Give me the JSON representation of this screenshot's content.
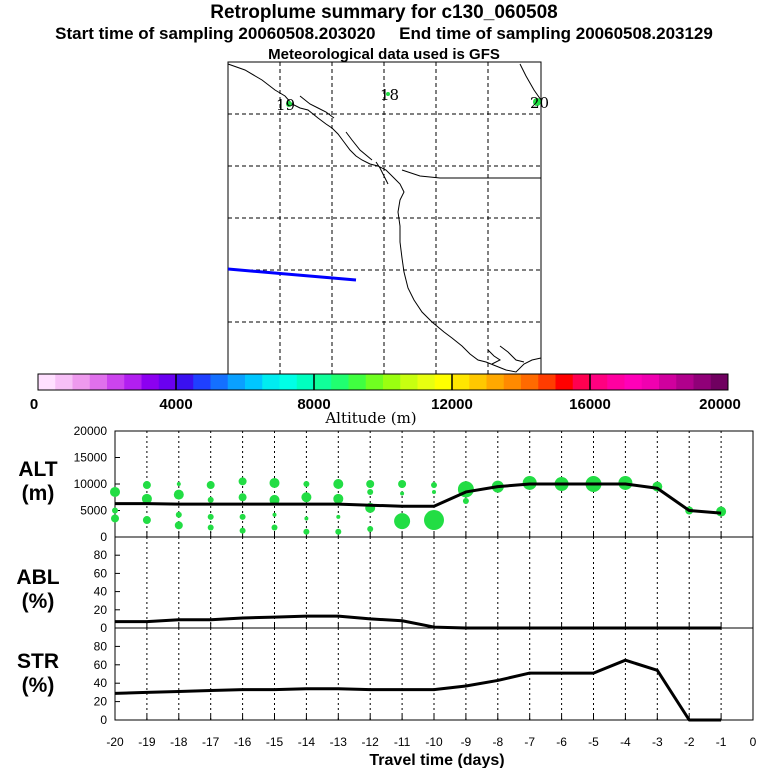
{
  "title": "Retroplume summary for c130_060508",
  "subtitle_start": "Start time of sampling 20060508.203020",
  "subtitle_end": "End time of sampling 20060508.203129",
  "subtitle_met": "Meteorological data used is GFS",
  "map": {
    "day_labels": [
      "19",
      "18",
      "20"
    ],
    "trajectory_color": "#0000ff",
    "marker_color": "#22dd44"
  },
  "colorbar": {
    "label": "Altitude (m)",
    "ticks": [
      "0",
      "4000",
      "8000",
      "12000",
      "16000",
      "20000"
    ],
    "colors": [
      "#ffe0ff",
      "#f7c0f7",
      "#ee9aee",
      "#e070ec",
      "#cc44ee",
      "#b21ff0",
      "#8c00f0",
      "#6a00f0",
      "#3a10f0",
      "#1f40ff",
      "#1470ff",
      "#0aa0ff",
      "#00c6ff",
      "#00ecf0",
      "#00ffe6",
      "#00ffbf",
      "#10ff9a",
      "#20ff70",
      "#40ff40",
      "#70ff20",
      "#9aff10",
      "#c8ff10",
      "#e8ff10",
      "#ffff00",
      "#ffe600",
      "#ffc800",
      "#ffa800",
      "#ff8a00",
      "#ff6a00",
      "#ff3c00",
      "#ff0000",
      "#ff0050",
      "#ff0080",
      "#ff00a0",
      "#ff00b8",
      "#f000b0",
      "#d0009e",
      "#b0008c",
      "#900078",
      "#700060"
    ]
  },
  "chart_data": [
    {
      "type": "line",
      "panel": "ALT",
      "ylabel": "ALT (m)",
      "ylim": [
        0,
        20000
      ],
      "yticks": [
        "0",
        "5000",
        "10000",
        "15000",
        "20000"
      ],
      "x": [
        -20,
        -19,
        -18,
        -17,
        -16,
        -15,
        -14,
        -13,
        -12,
        -11,
        -10,
        -9,
        -8,
        -7,
        -6,
        -5,
        -4,
        -3,
        -2,
        -1
      ],
      "values": [
        6300,
        6300,
        6200,
        6200,
        6200,
        6200,
        6200,
        6200,
        6000,
        5800,
        5800,
        8500,
        9500,
        10000,
        10000,
        10000,
        10000,
        9200,
        5000,
        4500
      ],
      "scatter": [
        {
          "x": -20,
          "y": 8500,
          "s": 5
        },
        {
          "x": -20,
          "y": 5000,
          "s": 3
        },
        {
          "x": -20,
          "y": 3500,
          "s": 4
        },
        {
          "x": -19,
          "y": 9800,
          "s": 4
        },
        {
          "x": -19,
          "y": 7200,
          "s": 5
        },
        {
          "x": -19,
          "y": 3200,
          "s": 4
        },
        {
          "x": -18,
          "y": 10000,
          "s": 2
        },
        {
          "x": -18,
          "y": 8000,
          "s": 5
        },
        {
          "x": -18,
          "y": 4200,
          "s": 3
        },
        {
          "x": -18,
          "y": 2200,
          "s": 4
        },
        {
          "x": -17,
          "y": 9800,
          "s": 4
        },
        {
          "x": -17,
          "y": 7000,
          "s": 3
        },
        {
          "x": -17,
          "y": 3800,
          "s": 3
        },
        {
          "x": -17,
          "y": 1800,
          "s": 3
        },
        {
          "x": -16,
          "y": 10500,
          "s": 4
        },
        {
          "x": -16,
          "y": 7500,
          "s": 4
        },
        {
          "x": -16,
          "y": 3800,
          "s": 3
        },
        {
          "x": -16,
          "y": 1200,
          "s": 3
        },
        {
          "x": -15,
          "y": 10200,
          "s": 5
        },
        {
          "x": -15,
          "y": 7000,
          "s": 5
        },
        {
          "x": -15,
          "y": 4200,
          "s": 2
        },
        {
          "x": -15,
          "y": 1800,
          "s": 3
        },
        {
          "x": -14,
          "y": 10000,
          "s": 3
        },
        {
          "x": -14,
          "y": 7500,
          "s": 5
        },
        {
          "x": -14,
          "y": 3500,
          "s": 2
        },
        {
          "x": -14,
          "y": 1000,
          "s": 3
        },
        {
          "x": -13,
          "y": 10000,
          "s": 5
        },
        {
          "x": -13,
          "y": 7200,
          "s": 5
        },
        {
          "x": -13,
          "y": 3800,
          "s": 2
        },
        {
          "x": -13,
          "y": 1000,
          "s": 3
        },
        {
          "x": -12,
          "y": 10000,
          "s": 4
        },
        {
          "x": -12,
          "y": 8500,
          "s": 3
        },
        {
          "x": -12,
          "y": 5500,
          "s": 5
        },
        {
          "x": -12,
          "y": 1500,
          "s": 3
        },
        {
          "x": -11,
          "y": 10000,
          "s": 4
        },
        {
          "x": -11,
          "y": 8200,
          "s": 2
        },
        {
          "x": -11,
          "y": 3000,
          "s": 8
        },
        {
          "x": -10,
          "y": 9800,
          "s": 3
        },
        {
          "x": -10,
          "y": 8500,
          "s": 2
        },
        {
          "x": -10,
          "y": 3200,
          "s": 10
        },
        {
          "x": -9,
          "y": 9000,
          "s": 8
        },
        {
          "x": -9,
          "y": 6800,
          "s": 3
        },
        {
          "x": -8,
          "y": 9500,
          "s": 6
        },
        {
          "x": -7,
          "y": 10200,
          "s": 7
        },
        {
          "x": -6,
          "y": 10000,
          "s": 7
        },
        {
          "x": -5,
          "y": 10000,
          "s": 8
        },
        {
          "x": -4,
          "y": 10200,
          "s": 7
        },
        {
          "x": -3,
          "y": 9500,
          "s": 5
        },
        {
          "x": -2,
          "y": 5000,
          "s": 4
        },
        {
          "x": -1,
          "y": 4800,
          "s": 5
        }
      ]
    },
    {
      "type": "line",
      "panel": "ABL",
      "ylabel": "ABL (%)",
      "ylim": [
        0,
        100
      ],
      "yticks": [
        "0",
        "20",
        "40",
        "60",
        "80"
      ],
      "x": [
        -20,
        -19,
        -18,
        -17,
        -16,
        -15,
        -14,
        -13,
        -12,
        -11,
        -10,
        -9,
        -8,
        -7,
        -6,
        -5,
        -4,
        -3,
        -2,
        -1
      ],
      "values": [
        7,
        7,
        9,
        9,
        11,
        12,
        13,
        13,
        10,
        8,
        1,
        0,
        0,
        0,
        0,
        0,
        0,
        0,
        0,
        0
      ]
    },
    {
      "type": "line",
      "panel": "STR",
      "ylabel": "STR (%)",
      "ylim": [
        0,
        100
      ],
      "yticks": [
        "0",
        "20",
        "40",
        "60",
        "80"
      ],
      "x": [
        -20,
        -19,
        -18,
        -17,
        -16,
        -15,
        -14,
        -13,
        -12,
        -11,
        -10,
        -9,
        -8,
        -7,
        -6,
        -5,
        -4,
        -3,
        -2,
        -1
      ],
      "values": [
        29,
        30,
        31,
        32,
        33,
        33,
        34,
        34,
        33,
        33,
        33,
        37,
        43,
        51,
        51,
        51,
        65,
        54,
        0,
        0
      ]
    }
  ],
  "x_axis": {
    "label": "Travel time (days)",
    "ticks": [
      "-20",
      "-19",
      "-18",
      "-17",
      "-16",
      "-15",
      "-14",
      "-13",
      "-12",
      "-11",
      "-10",
      "-9",
      "-8",
      "-7",
      "-6",
      "-5",
      "-4",
      "-3",
      "-2",
      "-1",
      "0"
    ]
  },
  "panel_labels": {
    "alt": [
      "ALT",
      "(m)"
    ],
    "abl": [
      "ABL",
      "(%)"
    ],
    "str": [
      "STR",
      "(%)"
    ]
  }
}
